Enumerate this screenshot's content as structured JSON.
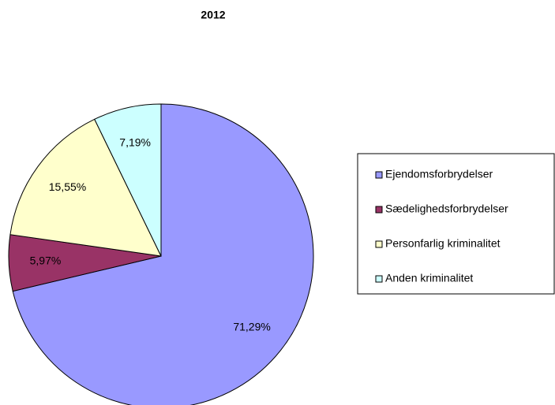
{
  "chart_data": {
    "type": "pie",
    "title": "2012",
    "categories": [
      "Ejendomsforbrydelser",
      "Sædelighedsforbrydelser",
      "Personfarlig kriminalitet",
      "Anden kriminalitet"
    ],
    "values": [
      71.29,
      5.97,
      15.55,
      7.19
    ],
    "value_labels": [
      "71,29%",
      "5,97%",
      "15,55%",
      "7,19%"
    ],
    "colors": [
      "#9999ff",
      "#993366",
      "#ffffcc",
      "#ccffff"
    ],
    "legend": "right"
  }
}
